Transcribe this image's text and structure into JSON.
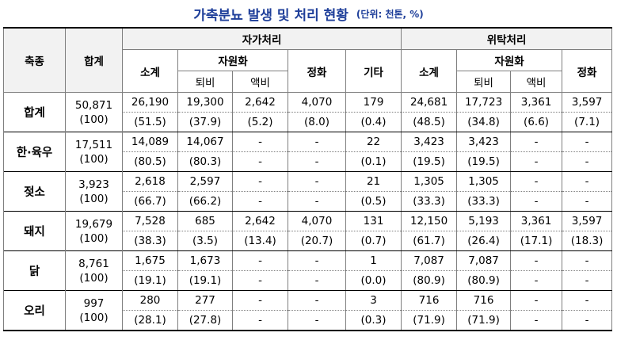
{
  "title": "가축분뇨 발생 및 처리 현황",
  "unit": "(단위: 천톤, %)",
  "header": {
    "livestock": "축종",
    "total": "합계",
    "self_treatment": "자가처리",
    "outsourced": "위탁처리",
    "subtotal": "소계",
    "resource": "자원화",
    "compost": "퇴비",
    "liquid": "액비",
    "purification": "정화",
    "other": "기타"
  },
  "rows": [
    {
      "label": "합계",
      "total": "50,871",
      "total_pct": "(100)",
      "values": [
        "26,190",
        "19,300",
        "2,642",
        "4,070",
        "179",
        "24,681",
        "17,723",
        "3,361",
        "3,597"
      ],
      "pcts": [
        "(51.5)",
        "(37.9)",
        "(5.2)",
        "(8.0)",
        "(0.4)",
        "(48.5)",
        "(34.8)",
        "(6.6)",
        "(7.1)"
      ]
    },
    {
      "label": "한·육우",
      "total": "17,511",
      "total_pct": "(100)",
      "values": [
        "14,089",
        "14,067",
        "-",
        "-",
        "22",
        "3,423",
        "3,423",
        "-",
        "-"
      ],
      "pcts": [
        "(80.5)",
        "(80.3)",
        "-",
        "-",
        "(0.1)",
        "(19.5)",
        "(19.5)",
        "-",
        "-"
      ]
    },
    {
      "label": "젖소",
      "total": "3,923",
      "total_pct": "(100)",
      "values": [
        "2,618",
        "2,597",
        "-",
        "-",
        "21",
        "1,305",
        "1,305",
        "-",
        "-"
      ],
      "pcts": [
        "(66.7)",
        "(66.2)",
        "-",
        "-",
        "(0.5)",
        "(33.3)",
        "(33.3)",
        "-",
        "-"
      ]
    },
    {
      "label": "돼지",
      "total": "19,679",
      "total_pct": "(100)",
      "values": [
        "7,528",
        "685",
        "2,642",
        "4,070",
        "131",
        "12,150",
        "5,193",
        "3,361",
        "3,597"
      ],
      "pcts": [
        "(38.3)",
        "(3.5)",
        "(13.4)",
        "(20.7)",
        "(0.7)",
        "(61.7)",
        "(26.4)",
        "(17.1)",
        "(18.3)"
      ]
    },
    {
      "label": "닭",
      "total": "8,761",
      "total_pct": "(100)",
      "values": [
        "1,675",
        "1,673",
        "-",
        "-",
        "1",
        "7,087",
        "7,087",
        "-",
        "-"
      ],
      "pcts": [
        "(19.1)",
        "(19.1)",
        "-",
        "-",
        "(0.0)",
        "(80.9)",
        "(80.9)",
        "-",
        "-"
      ]
    },
    {
      "label": "오리",
      "total": "997",
      "total_pct": "(100)",
      "values": [
        "280",
        "277",
        "-",
        "-",
        "3",
        "716",
        "716",
        "-",
        "-"
      ],
      "pcts": [
        "(28.1)",
        "(27.8)",
        "-",
        "-",
        "(0.3)",
        "(71.9)",
        "(71.9)",
        "-",
        "-"
      ]
    }
  ],
  "colors": {
    "title": "#1f3f9a",
    "header_bg": "#f2f2f2"
  }
}
